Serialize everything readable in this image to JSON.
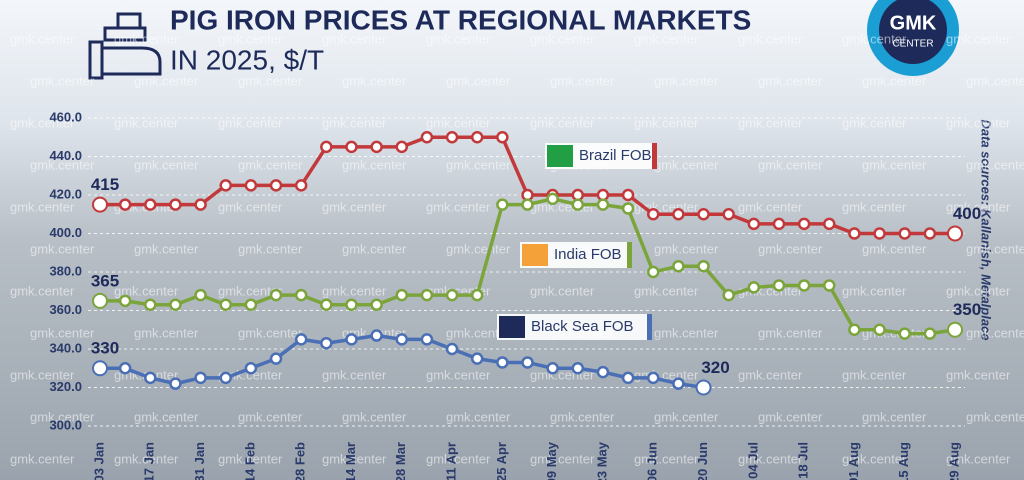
{
  "chart_data": {
    "type": "line",
    "title": "PIG IRON PRICES AT REGIONAL MARKETS",
    "subtitle": "IN 2025, $/T",
    "source": "Data sources: Kallanish, Metalplace",
    "watermark": "gmk.center",
    "logo": {
      "name": "GMK",
      "sub": "CENTER"
    },
    "categories": [
      "03 Jan",
      null,
      "17 Jan",
      null,
      "31 Jan",
      null,
      "14 Feb",
      null,
      "28 Feb",
      null,
      "14 Mar",
      null,
      "28 Mar",
      null,
      "11 Apr",
      null,
      "25 Apr",
      null,
      "09 May",
      null,
      "23 May",
      null,
      "06 Jun",
      null,
      "20 Jun",
      null,
      "04 Jul",
      null,
      "18 Jul",
      null,
      "01 Aug",
      null,
      "15 Aug",
      null,
      "29 Aug"
    ],
    "series": [
      {
        "name": "Brazil FOB",
        "color": "#c2393b",
        "values": [
          415,
          415,
          415,
          415,
          415,
          425,
          425,
          425,
          425,
          445,
          445,
          445,
          445,
          450,
          450,
          450,
          450,
          420,
          420,
          420,
          420,
          420,
          410,
          410,
          410,
          410,
          405,
          405,
          405,
          405,
          400,
          400,
          400,
          400,
          400
        ]
      },
      {
        "name": "India FOB",
        "color": "#7ba43b",
        "values": [
          365,
          365,
          363,
          363,
          368,
          363,
          363,
          368,
          368,
          363,
          363,
          363,
          368,
          368,
          368,
          368,
          415,
          415,
          418,
          415,
          415,
          413,
          380,
          383,
          383,
          368,
          372,
          373,
          373,
          373,
          350,
          350,
          348,
          348,
          350
        ]
      },
      {
        "name": "Black Sea FOB",
        "color": "#4a6fb5",
        "values": [
          330,
          330,
          325,
          322,
          325,
          325,
          330,
          335,
          345,
          343,
          345,
          347,
          345,
          345,
          340,
          335,
          333,
          333,
          330,
          330,
          328,
          325,
          325,
          322,
          320,
          null,
          null,
          null,
          null,
          null,
          null,
          null,
          null,
          null,
          null
        ]
      }
    ],
    "ylim": [
      300,
      460
    ],
    "yticks": [
      {
        "value": 300,
        "label": "300.0"
      },
      {
        "value": 320,
        "label": "320.0"
      },
      {
        "value": 340,
        "label": "340.0"
      },
      {
        "value": 360,
        "label": "360.0"
      },
      {
        "value": 380,
        "label": "380.0"
      },
      {
        "value": 400,
        "label": "400.0"
      },
      {
        "value": 420,
        "label": "420.0"
      },
      {
        "value": 440,
        "label": "440.0"
      },
      {
        "value": 460,
        "label": "460.0"
      }
    ],
    "grid": true
  }
}
